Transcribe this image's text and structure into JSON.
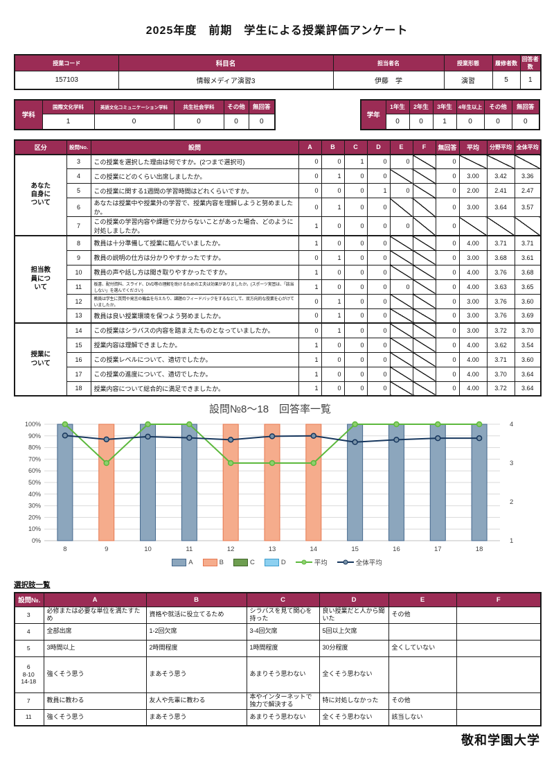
{
  "page_title": "2025年度　前期　学生による授業評価アンケート",
  "course_info": {
    "headers": [
      "授業コード",
      "科目名",
      "担当者名",
      "授業形態",
      "履修者数",
      "回答者数"
    ],
    "values": [
      "157103",
      "情報メディア演習3",
      "伊藤　学",
      "演習",
      "5",
      "1"
    ]
  },
  "department": {
    "label": "学科",
    "headers": [
      "国際文化学科",
      "英語文化コミュニケーション学科",
      "共生社会学科",
      "その他",
      "無回答"
    ],
    "values": [
      "1",
      "0",
      "0",
      "0",
      "0"
    ]
  },
  "grade": {
    "label": "学年",
    "headers": [
      "1年生",
      "2年生",
      "3年生",
      "4年生以上",
      "その他",
      "無回答"
    ],
    "values": [
      "0",
      "0",
      "1",
      "0",
      "0",
      "0"
    ]
  },
  "survey_table": {
    "headers": [
      "区分",
      "設問No.",
      "設問",
      "A",
      "B",
      "C",
      "D",
      "E",
      "F",
      "無回答",
      "平均",
      "分野平均",
      "全体平均"
    ],
    "groups": [
      {
        "label": "あなた\n自身に\nついて",
        "rows": [
          {
            "no": "3",
            "question": "この授業を選択した理由は何ですか。(2つまで選択可)",
            "values": [
              "0",
              "0",
              "1",
              "0",
              "0",
              null
            ],
            "no_response": "0",
            "avg": null,
            "field_avg": null,
            "overall_avg": null
          },
          {
            "no": "4",
            "question": "この授業にどのくらい出席しましたか。",
            "values": [
              "0",
              "1",
              "0",
              "0",
              null,
              null
            ],
            "no_response": "0",
            "avg": "3.00",
            "field_avg": "3.42",
            "overall_avg": "3.36"
          },
          {
            "no": "5",
            "question": "この授業に関する1週間の学習時間はどれくらいですか。",
            "values": [
              "0",
              "0",
              "0",
              "1",
              "0",
              null
            ],
            "no_response": "0",
            "avg": "2.00",
            "field_avg": "2.41",
            "overall_avg": "2.47"
          },
          {
            "no": "6",
            "question": "あなたは授業中や授業外の学習で、授業内容を理解しようと努めましたか。",
            "values": [
              "0",
              "1",
              "0",
              "0",
              null,
              null
            ],
            "no_response": "0",
            "avg": "3.00",
            "field_avg": "3.64",
            "overall_avg": "3.57"
          },
          {
            "no": "7",
            "question": "この授業の学習内容や課題で分からないことがあった場合、どのように対処しましたか。",
            "values": [
              "1",
              "0",
              "0",
              "0",
              "0",
              null
            ],
            "no_response": "0",
            "avg": null,
            "field_avg": null,
            "overall_avg": null
          }
        ]
      },
      {
        "label": "担当教\n員につ\nいて",
        "rows": [
          {
            "no": "8",
            "question": "教員は十分準備して授業に臨んでいましたか。",
            "values": [
              "1",
              "0",
              "0",
              "0",
              null,
              null
            ],
            "no_response": "0",
            "avg": "4.00",
            "field_avg": "3.71",
            "overall_avg": "3.71"
          },
          {
            "no": "9",
            "question": "教員の説明の仕方は分かりやすかったですか。",
            "values": [
              "0",
              "1",
              "0",
              "0",
              null,
              null
            ],
            "no_response": "0",
            "avg": "3.00",
            "field_avg": "3.68",
            "overall_avg": "3.61"
          },
          {
            "no": "10",
            "question": "教員の声や話し方は聞き取りやすかったですか。",
            "values": [
              "1",
              "0",
              "0",
              "0",
              null,
              null
            ],
            "no_response": "0",
            "avg": "4.00",
            "field_avg": "3.76",
            "overall_avg": "3.68"
          },
          {
            "no": "11",
            "question": "板書、配付資料、スライド、DVD等の理解を助けるための工夫は効果がありましたか。(スポーツ実習は、「該当しない」を選んでください)",
            "small": true,
            "values": [
              "1",
              "0",
              "0",
              "0",
              "0",
              null
            ],
            "no_response": "0",
            "avg": "4.00",
            "field_avg": "3.63",
            "overall_avg": "3.65"
          },
          {
            "no": "12",
            "question": "教員は学生に質問や発言の機会を与えたり、課題のフィードバックをするなどして、双方向的な授業を心がけていましたか。",
            "small": true,
            "values": [
              "0",
              "1",
              "0",
              "0",
              null,
              null
            ],
            "no_response": "0",
            "avg": "3.00",
            "field_avg": "3.76",
            "overall_avg": "3.60"
          },
          {
            "no": "13",
            "question": "教員は良い授業環境を保つよう努めましたか。",
            "values": [
              "0",
              "1",
              "0",
              "0",
              null,
              null
            ],
            "no_response": "0",
            "avg": "3.00",
            "field_avg": "3.76",
            "overall_avg": "3.69"
          }
        ]
      },
      {
        "label": "授業に\nついて",
        "rows": [
          {
            "no": "14",
            "question": "この授業はシラバスの内容を踏まえたものとなっていましたか。",
            "values": [
              "0",
              "1",
              "0",
              "0",
              null,
              null
            ],
            "no_response": "0",
            "avg": "3.00",
            "field_avg": "3.72",
            "overall_avg": "3.70"
          },
          {
            "no": "15",
            "question": "授業内容は理解できましたか。",
            "values": [
              "1",
              "0",
              "0",
              "0",
              null,
              null
            ],
            "no_response": "0",
            "avg": "4.00",
            "field_avg": "3.62",
            "overall_avg": "3.54"
          },
          {
            "no": "16",
            "question": "この授業レベルについて、適切でしたか。",
            "values": [
              "1",
              "0",
              "0",
              "0",
              null,
              null
            ],
            "no_response": "0",
            "avg": "4.00",
            "field_avg": "3.71",
            "overall_avg": "3.60"
          },
          {
            "no": "17",
            "question": "この授業の進度について、適切でしたか。",
            "values": [
              "1",
              "0",
              "0",
              "0",
              null,
              null
            ],
            "no_response": "0",
            "avg": "4.00",
            "field_avg": "3.70",
            "overall_avg": "3.64"
          },
          {
            "no": "18",
            "question": "授業内容について総合的に満足できましたか。",
            "values": [
              "1",
              "0",
              "0",
              "0",
              null,
              null
            ],
            "no_response": "0",
            "avg": "4.00",
            "field_avg": "3.72",
            "overall_avg": "3.64"
          }
        ]
      }
    ]
  },
  "chart_data": {
    "type": "bar",
    "title": "設問№8～18　回答率一覧",
    "categories": [
      "8",
      "9",
      "10",
      "11",
      "12",
      "13",
      "14",
      "15",
      "16",
      "17",
      "18"
    ],
    "series": [
      {
        "name": "A",
        "type": "bar",
        "color": "#8CA6BD",
        "border": "#44678C",
        "values": [
          100,
          0,
          100,
          100,
          0,
          0,
          0,
          100,
          100,
          100,
          100
        ]
      },
      {
        "name": "B",
        "type": "bar",
        "color": "#F5AC8C",
        "border": "#E67850",
        "values": [
          0,
          100,
          0,
          0,
          100,
          100,
          100,
          0,
          0,
          0,
          0
        ]
      },
      {
        "name": "C",
        "type": "bar",
        "color": "#6E9E50",
        "border": "#3E6427",
        "values": [
          0,
          0,
          0,
          0,
          0,
          0,
          0,
          0,
          0,
          0,
          0
        ]
      },
      {
        "name": "D",
        "type": "bar",
        "color": "#8CD0F0",
        "border": "#3C9CCC",
        "values": [
          0,
          0,
          0,
          0,
          0,
          0,
          0,
          0,
          0,
          0,
          0
        ]
      },
      {
        "name": "平均",
        "type": "line",
        "axis": "right",
        "color": "#5CB83C",
        "marker_fill": "#8ED06E",
        "values": [
          4.0,
          3.0,
          4.0,
          4.0,
          3.0,
          3.0,
          3.0,
          4.0,
          4.0,
          4.0,
          4.0
        ]
      },
      {
        "name": "全体平均",
        "type": "line",
        "axis": "right",
        "color": "#17375E",
        "marker_fill": "#7A93A8",
        "values": [
          3.71,
          3.61,
          3.68,
          3.65,
          3.6,
          3.69,
          3.7,
          3.54,
          3.6,
          3.64,
          3.64
        ]
      }
    ],
    "left_axis": {
      "label_format": "percent",
      "range": [
        0,
        100
      ],
      "tick_step": 10,
      "ticks": [
        "0%",
        "10%",
        "20%",
        "30%",
        "40%",
        "50%",
        "60%",
        "70%",
        "80%",
        "90%",
        "100%"
      ]
    },
    "right_axis": {
      "range": [
        1,
        4
      ],
      "ticks": [
        1,
        2,
        3,
        4
      ]
    },
    "grid": true,
    "legend_position": "bottom"
  },
  "choices": {
    "title": "選択肢一覧",
    "headers": [
      "設問№.",
      "A",
      "B",
      "C",
      "D",
      "E",
      "F"
    ],
    "rows": [
      {
        "no": "3",
        "cells": [
          "必修または必要な単位を満たすため",
          "資格や就活に役立てるため",
          "シラバスを見て関心を持った",
          "良い授業だと人から聞いた",
          "その他",
          ""
        ]
      },
      {
        "no": "4",
        "cells": [
          "全部出席",
          "1-2回欠席",
          "3-4回欠席",
          "5回以上欠席",
          "",
          ""
        ]
      },
      {
        "no": "5",
        "cells": [
          "3時間以上",
          "2時間程度",
          "1時間程度",
          "30分程度",
          "全くしていない",
          ""
        ]
      },
      {
        "no": "6\n8-10\n14-18",
        "tall": true,
        "cells": [
          "強くそう思う",
          "まあそう思う",
          "あまりそう思わない",
          "全くそう思わない",
          "",
          ""
        ]
      },
      {
        "no": "7",
        "cells": [
          "教員に教わる",
          "友人や先輩に教わる",
          "本やインターネットで\n独力で解決する",
          "特に対処しなかった",
          "その他",
          ""
        ]
      },
      {
        "no": "11",
        "cells": [
          "強くそう思う",
          "まあそう思う",
          "あまりそう思わない",
          "全くそう思わない",
          "該当しない",
          ""
        ]
      }
    ]
  },
  "footer": {
    "university": "敬和学園大学"
  },
  "colors": {
    "header_bg": "#9B2C55",
    "header_text": "#ffffff",
    "grid_line": "#D9D9D9",
    "axis_text": "#404040"
  }
}
